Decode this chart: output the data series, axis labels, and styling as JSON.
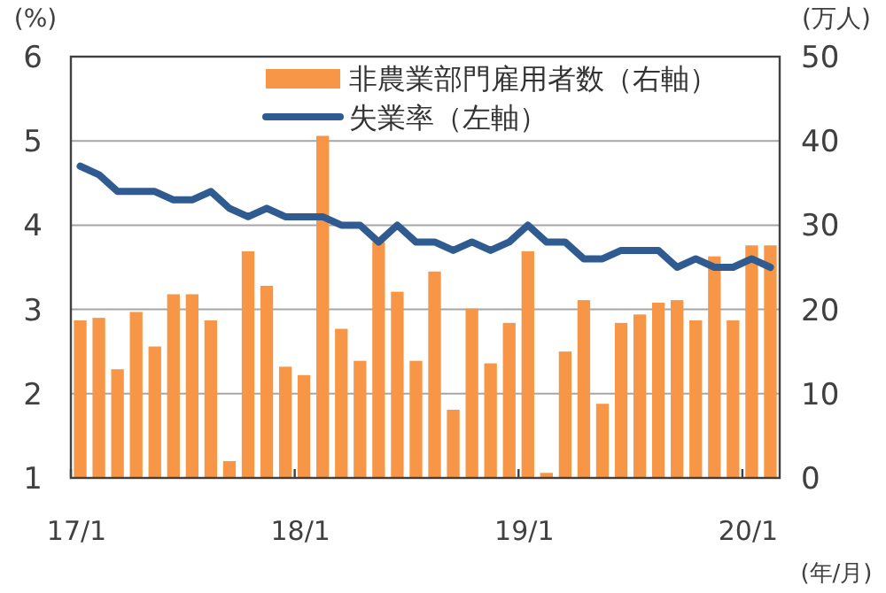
{
  "chart_data": {
    "type": "bar",
    "xlabel": "(年/月)",
    "ylabel": "(%)",
    "y2label": "(万人)",
    "categories": [
      "17/1",
      null,
      null,
      null,
      null,
      null,
      null,
      null,
      null,
      null,
      null,
      null,
      "18/1",
      null,
      null,
      null,
      null,
      null,
      null,
      null,
      null,
      null,
      null,
      null,
      "19/1",
      null,
      null,
      null,
      null,
      null,
      null,
      null,
      null,
      null,
      null,
      null,
      "20/1",
      null
    ],
    "series": [
      {
        "name": "非農業部門雇用者数（右軸）",
        "axis": "y2",
        "color": "#f79646",
        "values": [
          18.7,
          19.0,
          12.9,
          19.7,
          15.6,
          21.8,
          21.8,
          18.7,
          2.0,
          26.9,
          22.8,
          13.2,
          12.2,
          40.6,
          17.7,
          13.9,
          28.0,
          22.1,
          13.9,
          24.5,
          8.1,
          20.1,
          13.6,
          18.4,
          26.9,
          0.6,
          15.0,
          21.1,
          8.8,
          18.4,
          19.4,
          20.8,
          21.1,
          18.7,
          26.3,
          18.7,
          27.6,
          27.6
        ]
      },
      {
        "name": "失業率（左軸）",
        "type": "line",
        "color": "#2f5b91",
        "values": [
          4.7,
          4.6,
          4.4,
          4.4,
          4.4,
          4.3,
          4.3,
          4.4,
          4.2,
          4.1,
          4.2,
          4.1,
          4.1,
          4.1,
          4.0,
          4.0,
          3.8,
          4.0,
          3.8,
          3.8,
          3.7,
          3.8,
          3.7,
          3.8,
          4.0,
          3.8,
          3.8,
          3.6,
          3.6,
          3.7,
          3.7,
          3.7,
          3.5,
          3.6,
          3.5,
          3.5,
          3.6,
          3.5
        ]
      }
    ],
    "ylim": [
      1,
      6
    ],
    "yticks": [
      1,
      2,
      3,
      4,
      5,
      6
    ],
    "y2lim": [
      0,
      50
    ],
    "y2ticks": [
      0,
      10,
      20,
      30,
      40,
      50
    ],
    "grid": "y",
    "legend": "top right"
  }
}
